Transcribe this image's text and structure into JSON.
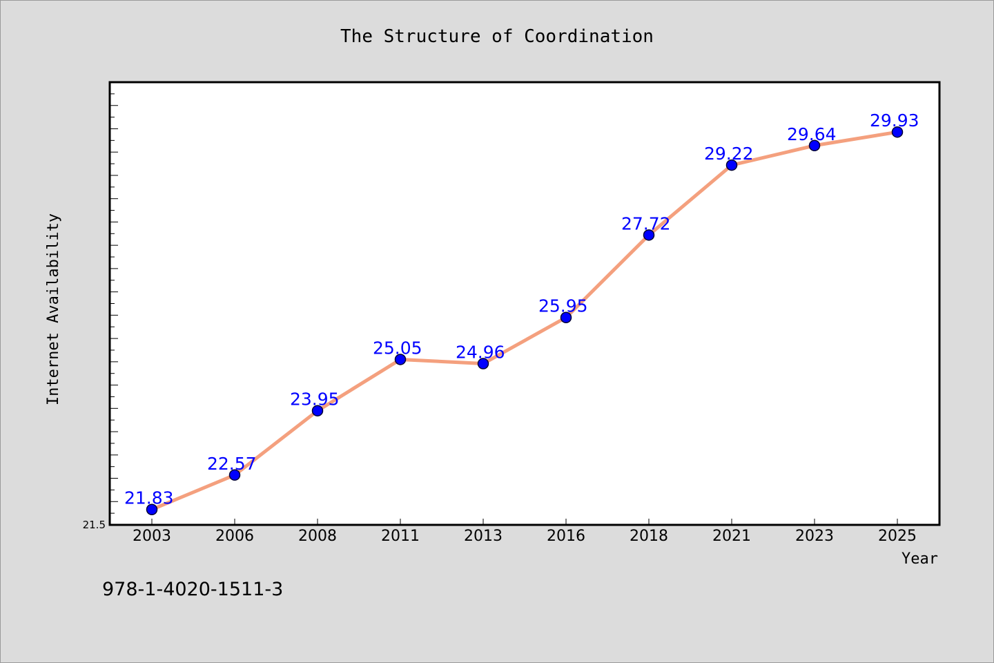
{
  "page": {
    "footer": "978-1-4020-1511-3"
  },
  "colors": {
    "background": "#dcdcdc",
    "plot_background": "#ffffff",
    "line": "#f4a07e",
    "marker": "#0000ff",
    "data_label": "#0000ff"
  },
  "chart_data": {
    "type": "line",
    "title": "The Structure of Coordination",
    "xlabel": "Year",
    "ylabel": "Internet Availability",
    "categories": [
      "2003",
      "2006",
      "2008",
      "2011",
      "2013",
      "2016",
      "2018",
      "2021",
      "2023",
      "2025"
    ],
    "values": [
      21.83,
      22.57,
      23.95,
      25.05,
      24.96,
      25.95,
      27.72,
      29.22,
      29.64,
      29.93
    ],
    "data_labels": [
      "21.83",
      "22.57",
      "23.95",
      "25.05",
      "24.96",
      "25.95",
      "27.72",
      "29.22",
      "29.64",
      "29.93"
    ],
    "ylim": [
      21.5,
      31.0
    ],
    "ytick_labels": [
      "21.5"
    ],
    "grid": false,
    "legend": "none",
    "markers": true
  }
}
